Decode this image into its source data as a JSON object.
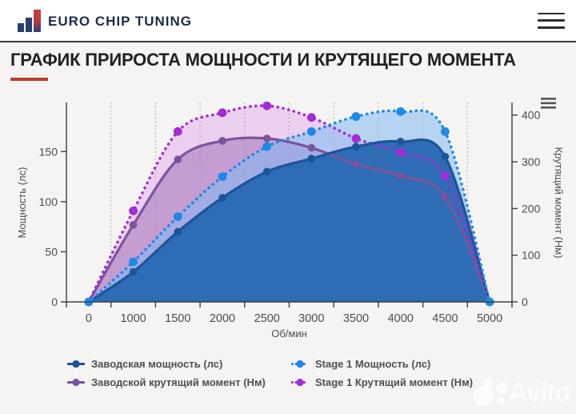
{
  "header": {
    "brand": "EURO CHIP TUNING"
  },
  "page": {
    "title": "ГРАФИК ПРИРОСТА МОЩНОСТИ И КРУТЯЩЕГО МОМЕНТА"
  },
  "watermark": {
    "text": "Avito"
  },
  "chart_data": {
    "type": "line",
    "categories": [
      0,
      1000,
      1500,
      2000,
      2500,
      3000,
      3500,
      4000,
      4500,
      5000
    ],
    "xlabel": "Об/мин",
    "axes": {
      "left": {
        "label": "Мощность (лс)",
        "ticks": [
          0,
          50,
          100,
          150
        ],
        "max": 199
      },
      "right": {
        "label": "Крутящий момент (Нм)",
        "ticks": [
          0,
          100,
          200,
          300,
          400
        ],
        "max": 427
      }
    },
    "grid": "dotted-vertical-between-categories",
    "legend_position": "bottom",
    "series": [
      {
        "name": "Заводская мощность (лс)",
        "axis": "left",
        "line": "solid",
        "color": "#1d5499",
        "fill": "#2e6cb5",
        "fill_opacity": 1,
        "values": [
          0,
          30,
          70,
          104,
          130,
          143,
          155,
          160,
          145,
          0
        ]
      },
      {
        "name": "Заводской крутящий момент (Нм)",
        "axis": "right",
        "line": "solid",
        "color": "#7b549e",
        "fill": "rgba(150,95,175,0.45)",
        "fill_opacity": 1,
        "values": [
          0,
          165,
          305,
          345,
          350,
          330,
          295,
          270,
          225,
          0
        ]
      },
      {
        "name": "Stage 1 Мощность (лс)",
        "axis": "left",
        "line": "dotted",
        "color": "#1e88e5",
        "fill": "rgba(130,185,242,0.55)",
        "fill_opacity": 1,
        "values": [
          0,
          40,
          85,
          125,
          155,
          170,
          185,
          190,
          170,
          0
        ]
      },
      {
        "name": "Stage 1 Крутящий момент (Нм)",
        "axis": "right",
        "line": "dotted",
        "color": "#a42cd6",
        "fill": "rgba(205,115,230,0.28)",
        "fill_opacity": 1,
        "values": [
          0,
          195,
          365,
          405,
          420,
          395,
          350,
          320,
          270,
          0
        ]
      }
    ],
    "draw_order": {
      "areas": [
        3,
        1,
        2,
        0
      ],
      "lines": [
        1,
        3,
        0,
        2
      ]
    }
  }
}
